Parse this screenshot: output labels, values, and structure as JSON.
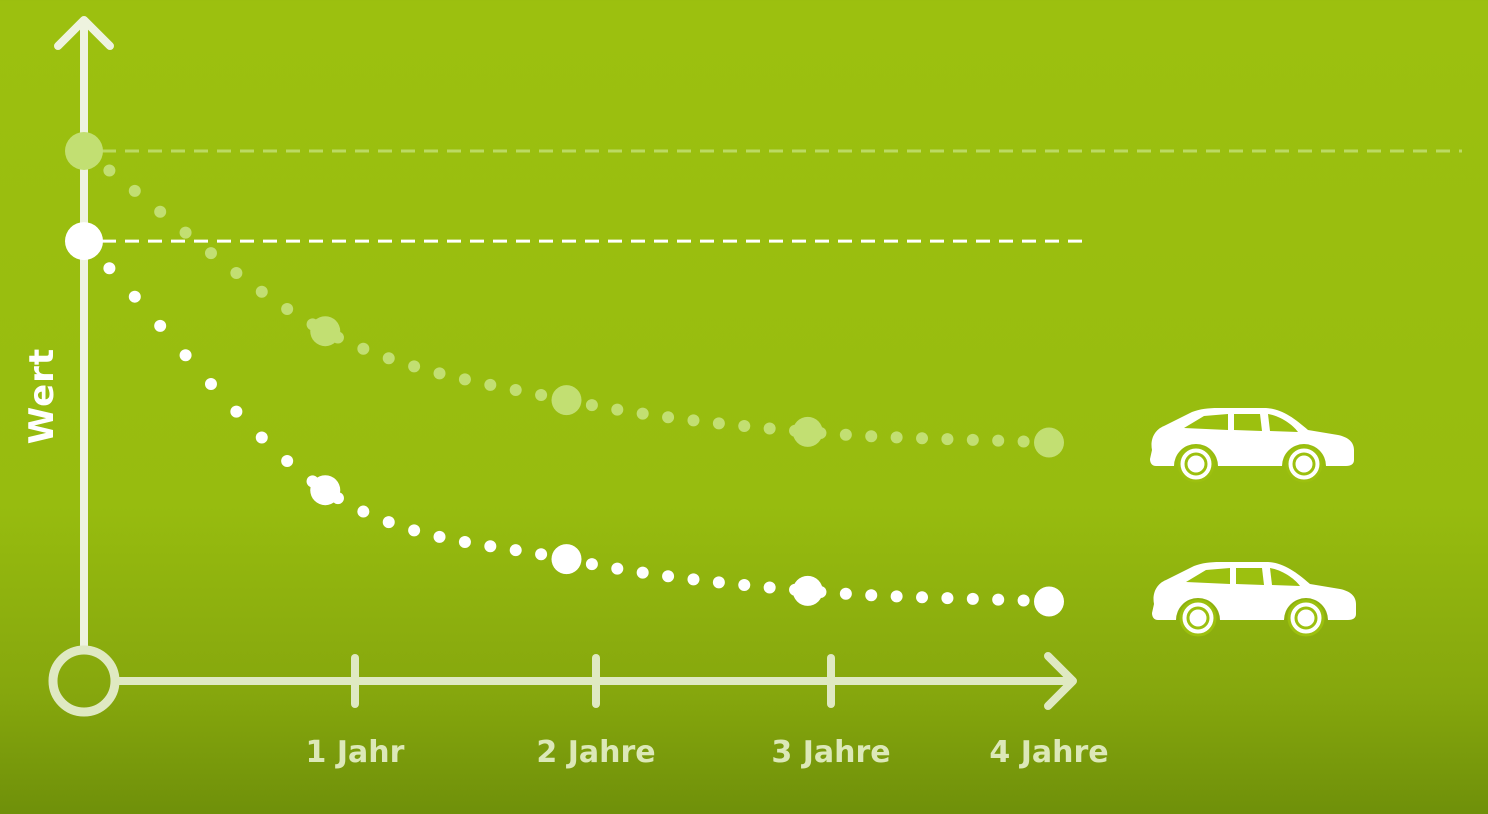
{
  "chart_data": {
    "type": "line",
    "ylabel": "Wert",
    "xlabel": "",
    "title": "",
    "categories": [
      "1 Jahr",
      "2 Jahre",
      "3 Jahre",
      "4 Jahre"
    ],
    "x": [
      0,
      1,
      2,
      3,
      4
    ],
    "xlim": [
      0,
      4
    ],
    "ylim": [
      0,
      100
    ],
    "grid": false,
    "legend": "none",
    "series": [
      {
        "values": [
          100,
          66,
          53,
          47,
          45
        ],
        "color": "#c2df72",
        "icon": "station-wagon-icon",
        "reference_line": "dashed to right edge"
      },
      {
        "values": [
          83,
          36,
          23,
          17,
          15
        ],
        "color": "#ffffff",
        "icon": "station-wagon-icon",
        "reference_line": "dashed"
      }
    ],
    "colors": {
      "background": "#9cc00f",
      "axis": "#eef3df",
      "tick_label": "#dce8b8"
    }
  }
}
